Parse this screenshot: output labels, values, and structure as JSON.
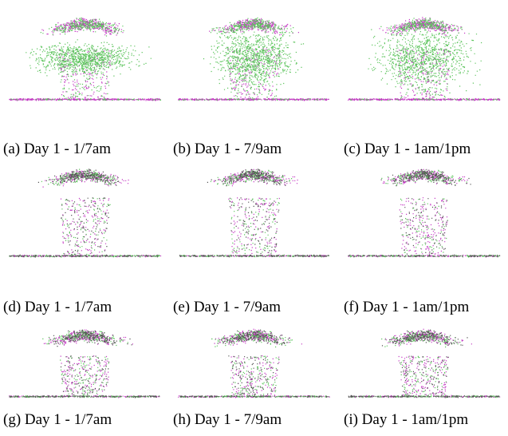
{
  "figure": {
    "panels": [
      {
        "caption": "(a) Day 1 - 1/7am"
      },
      {
        "caption": "(b) Day 1 - 7/9am"
      },
      {
        "caption": "(c) Day 1 - 1am/1pm"
      },
      {
        "caption": "(d) Day 1 - 1/7am"
      },
      {
        "caption": "(e) Day 1 - 7/9am"
      },
      {
        "caption": "(f) Day 1 - 1am/1pm"
      },
      {
        "caption": "(g) Day 1 - 1/7am"
      },
      {
        "caption": "(h) Day 1 - 7/9am"
      },
      {
        "caption": "(i) Day 1 - 1am/1pm"
      }
    ]
  }
}
